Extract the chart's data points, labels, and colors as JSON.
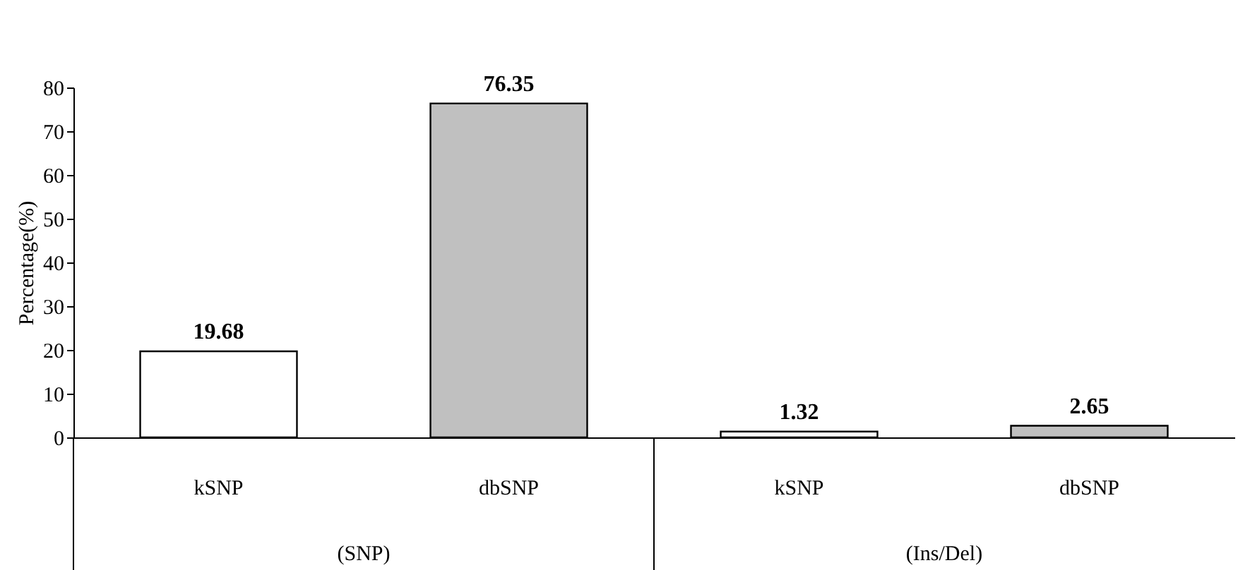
{
  "chart_data": {
    "type": "bar",
    "ylabel": "Percentage(%)",
    "categories": [
      "kSNP",
      "dbSNP",
      "kSNP",
      "dbSNP"
    ],
    "values": [
      19.68,
      76.35,
      1.32,
      2.65
    ],
    "colors": [
      "#ffffff",
      "#c0c0c0",
      "#ffffff",
      "#c0c0c0"
    ],
    "ylim": [
      0,
      80
    ],
    "yticks": [
      0,
      10,
      20,
      30,
      40,
      50,
      60,
      70,
      80
    ],
    "data_labels": true,
    "grid": false,
    "annotations": [
      "(SNP)",
      "(Ins/Del)"
    ]
  }
}
